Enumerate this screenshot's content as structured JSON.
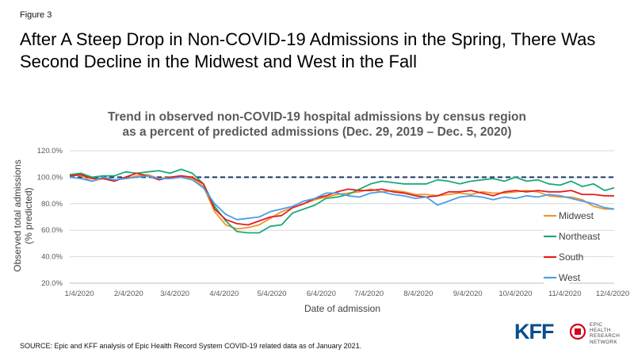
{
  "figure_label": "Figure 3",
  "headline": "After A Steep Drop in Non-COVID-19 Admissions in the Spring, There Was Second Decline in the Midwest and West in the Fall",
  "source": "SOURCE: Epic and KFF analysis of Epic Health Record System COVID-19 related data as of January 2021.",
  "logo": {
    "kff": "KFF",
    "epic_lines": [
      "EPIC",
      "HEALTH",
      "RESEARCH",
      "NETWORK"
    ],
    "brand_color": "#0a4c8f",
    "accent_color": "#d0021b"
  },
  "chart_data": {
    "type": "line",
    "title_lines": [
      "Trend in observed non-COVID-19 hospital admissions by census region",
      "as a percent of predicted admissions (Dec. 29, 2019 – Dec. 5, 2020)"
    ],
    "xlabel": "Date of admission",
    "ylabel_lines": [
      "Observed total admissions",
      "(% predicted)"
    ],
    "ylim": [
      20,
      120
    ],
    "y_ticks": [
      "20.0%",
      "40.0%",
      "60.0%",
      "80.0%",
      "100.0%",
      "120.0%"
    ],
    "y_tick_values": [
      20,
      40,
      60,
      80,
      100,
      120
    ],
    "x_start": "2019-12-29",
    "x_end": "2020-12-05",
    "x_tick_dates": [
      "2020-01-04",
      "2020-02-04",
      "2020-03-04",
      "2020-04-04",
      "2020-05-04",
      "2020-06-04",
      "2020-07-04",
      "2020-08-04",
      "2020-09-04",
      "2020-10-04",
      "2020-11-04",
      "2020-12-04"
    ],
    "x_tick_labels": [
      "1/4/2020",
      "2/4/2020",
      "3/4/2020",
      "4/4/2020",
      "5/4/2020",
      "6/4/2020",
      "7/4/2020",
      "8/4/2020",
      "9/4/2020",
      "10/4/2020",
      "11/4/2020",
      "12/4/2020"
    ],
    "reference_line": {
      "value": 100,
      "style": "dashed",
      "color": "#1f3864"
    },
    "gridlines": "horizontal",
    "legend_position": "right",
    "week_dates": [
      "2019-12-29",
      "2020-01-05",
      "2020-01-12",
      "2020-01-19",
      "2020-01-26",
      "2020-02-02",
      "2020-02-09",
      "2020-02-16",
      "2020-02-23",
      "2020-03-01",
      "2020-03-08",
      "2020-03-15",
      "2020-03-22",
      "2020-03-29",
      "2020-04-05",
      "2020-04-12",
      "2020-04-19",
      "2020-04-26",
      "2020-05-03",
      "2020-05-10",
      "2020-05-17",
      "2020-05-24",
      "2020-05-31",
      "2020-06-07",
      "2020-06-14",
      "2020-06-21",
      "2020-06-28",
      "2020-07-05",
      "2020-07-12",
      "2020-07-19",
      "2020-07-26",
      "2020-08-02",
      "2020-08-09",
      "2020-08-16",
      "2020-08-23",
      "2020-08-30",
      "2020-09-06",
      "2020-09-13",
      "2020-09-20",
      "2020-09-27",
      "2020-10-04",
      "2020-10-11",
      "2020-10-18",
      "2020-10-25",
      "2020-11-01",
      "2020-11-08",
      "2020-11-15",
      "2020-11-22",
      "2020-11-29",
      "2020-12-05"
    ],
    "series": [
      {
        "name": "Midwest",
        "color": "#f0952a",
        "values": [
          102,
          101,
          97,
          99,
          98,
          99,
          101,
          102,
          99,
          100,
          101,
          99,
          93,
          74,
          64,
          61,
          62,
          64,
          69,
          74,
          77,
          80,
          83,
          85,
          87,
          88,
          89,
          91,
          89,
          90,
          89,
          87,
          87,
          86,
          87,
          88,
          87,
          89,
          88,
          88,
          89,
          90,
          89,
          86,
          85,
          85,
          83,
          78,
          76,
          76
        ]
      },
      {
        "name": "Northeast",
        "color": "#1aaa78",
        "values": [
          102,
          103,
          100,
          101,
          101,
          104,
          103,
          104,
          105,
          103,
          106,
          103,
          95,
          78,
          67,
          59,
          58,
          58,
          63,
          64,
          73,
          76,
          79,
          84,
          85,
          87,
          91,
          95,
          97,
          96,
          95,
          95,
          95,
          98,
          97,
          95,
          97,
          98,
          99,
          97,
          100,
          97,
          98,
          95,
          94,
          97,
          93,
          95,
          90,
          92
        ]
      },
      {
        "name": "South",
        "color": "#e02020",
        "values": [
          101,
          102,
          99,
          99,
          97,
          100,
          103,
          101,
          98,
          100,
          101,
          100,
          95,
          76,
          68,
          65,
          64,
          67,
          70,
          71,
          77,
          80,
          84,
          86,
          89,
          91,
          90,
          90,
          91,
          89,
          88,
          86,
          85,
          86,
          89,
          89,
          90,
          88,
          86,
          89,
          90,
          89,
          90,
          89,
          89,
          90,
          87,
          87,
          86,
          86
        ]
      },
      {
        "name": "West",
        "color": "#4a9ee8",
        "values": [
          100,
          99,
          97,
          100,
          98,
          99,
          100,
          101,
          99,
          99,
          100,
          98,
          92,
          80,
          72,
          68,
          69,
          70,
          74,
          76,
          78,
          82,
          84,
          88,
          88,
          86,
          85,
          88,
          89,
          87,
          86,
          84,
          85,
          79,
          82,
          85,
          86,
          85,
          83,
          85,
          84,
          86,
          85,
          87,
          86,
          84,
          82,
          80,
          77,
          76
        ]
      }
    ]
  }
}
